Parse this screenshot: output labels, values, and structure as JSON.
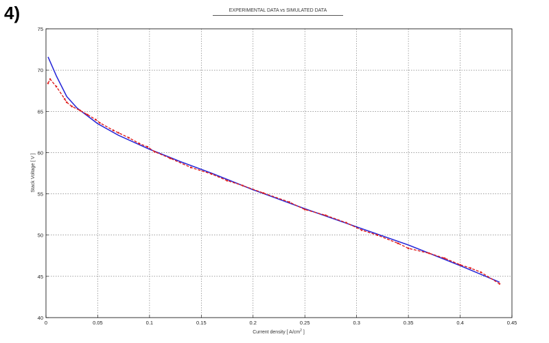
{
  "panel_label": "4)",
  "chart_data": {
    "type": "line",
    "title": "EXPERIMENTAL DATA   vs   SIMULATED DATA",
    "xlabel": "Current density  [ A/cm",
    "xlabel_sup": "2",
    "xlabel_end": " ]",
    "ylabel": "Stack Voltage  [ V ]",
    "xlim": [
      0,
      0.45
    ],
    "ylim": [
      40,
      75
    ],
    "xticks": [
      0,
      0.05,
      0.1,
      0.15,
      0.2,
      0.25,
      0.3,
      0.35,
      0.4,
      0.45
    ],
    "xtick_labels": [
      "0",
      "0.05",
      "0.1",
      "0.15",
      "0.2",
      "0.25",
      "0.3",
      "0.35",
      "0.4",
      "0.45"
    ],
    "yticks": [
      40,
      45,
      50,
      55,
      60,
      65,
      70,
      75
    ],
    "ytick_labels": [
      "40",
      "45",
      "50",
      "55",
      "60",
      "65",
      "70",
      "75"
    ],
    "grid": true,
    "series": [
      {
        "color": "#2a2ad8",
        "style": "solid",
        "x": [
          0.002,
          0.01,
          0.02,
          0.03,
          0.05,
          0.07,
          0.1,
          0.13,
          0.16,
          0.2,
          0.25,
          0.3,
          0.35,
          0.4,
          0.438
        ],
        "y": [
          71.6,
          69.3,
          66.8,
          65.4,
          63.5,
          62.1,
          60.4,
          58.9,
          57.5,
          55.5,
          53.2,
          51.0,
          48.8,
          46.3,
          44.3
        ]
      },
      {
        "color": "#e02020",
        "style": "dashed",
        "x": [
          0.002,
          0.004,
          0.01,
          0.018,
          0.02,
          0.025,
          0.033,
          0.04,
          0.048,
          0.052,
          0.065,
          0.07,
          0.08,
          0.09,
          0.098,
          0.105,
          0.12,
          0.14,
          0.16,
          0.175,
          0.19,
          0.21,
          0.235,
          0.25,
          0.27,
          0.29,
          0.305,
          0.32,
          0.34,
          0.35,
          0.37,
          0.385,
          0.4,
          0.41,
          0.42,
          0.438
        ],
        "y": [
          68.4,
          68.9,
          68.0,
          66.5,
          66.1,
          65.6,
          65.1,
          64.6,
          64.0,
          63.6,
          62.7,
          62.4,
          61.8,
          61.1,
          60.7,
          60.1,
          59.3,
          58.2,
          57.4,
          56.6,
          56.0,
          55.1,
          54.0,
          53.1,
          52.4,
          51.5,
          50.6,
          50.0,
          49.0,
          48.4,
          47.8,
          47.2,
          46.4,
          46.0,
          45.5,
          44.1
        ]
      }
    ]
  }
}
